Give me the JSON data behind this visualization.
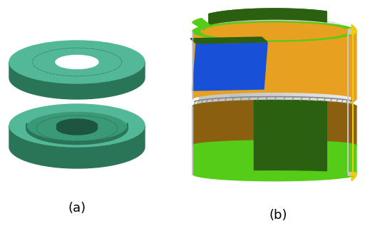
{
  "label_a": "(a)",
  "label_b": "(b)",
  "bg_color": "#ffffff",
  "teal_light": "#52b898",
  "teal_mid": "#3a9a78",
  "teal_dark": "#2a7558",
  "teal_darker": "#1e5540",
  "teal_side": "#2e8060",
  "orange_color": "#e8a020",
  "orange_dark": "#8a6010",
  "green_bright": "#55cc18",
  "green_dark": "#2a6010",
  "blue_color": "#1850d8",
  "gray_light": "#c8c8c8",
  "gray_mid": "#a8a8a8",
  "gray_dark": "#888888",
  "yellow_color": "#f0cc10",
  "white_color": "#f0f0f0",
  "font_size_label": 13
}
